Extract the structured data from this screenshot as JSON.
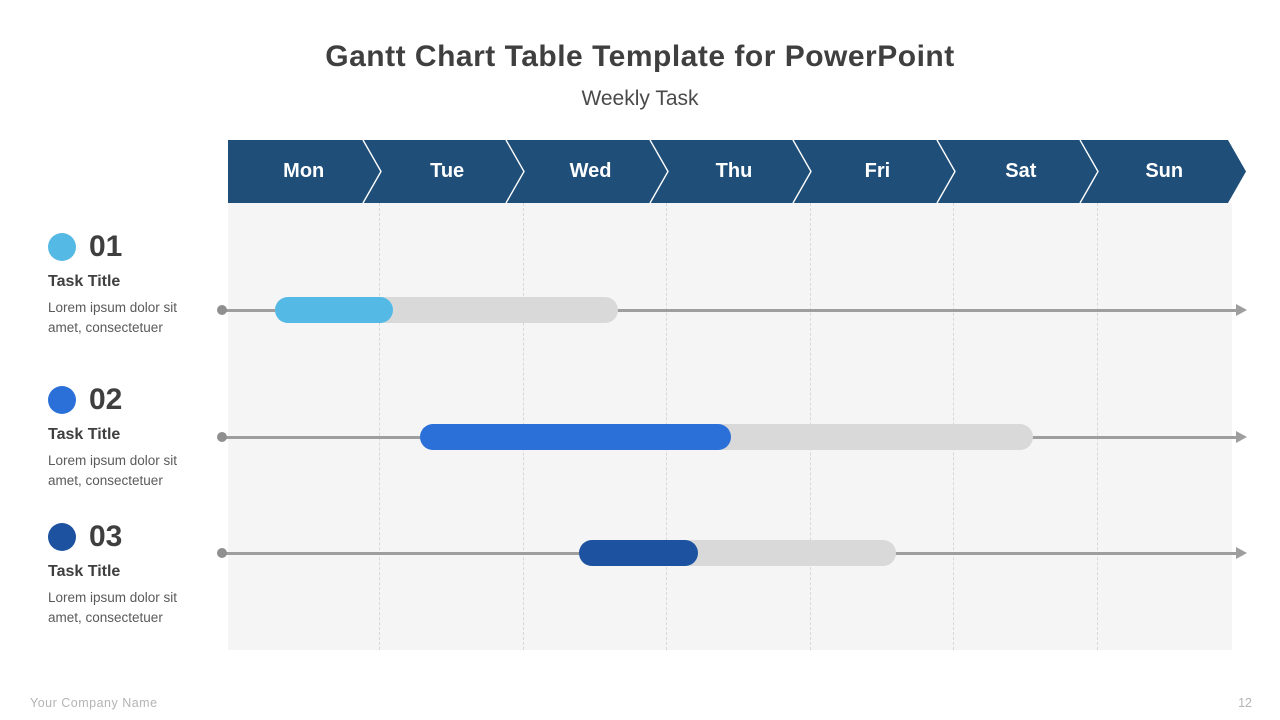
{
  "slide": {
    "title": "Gantt Chart Table Template for PowerPoint",
    "subtitle": "Weekly Task",
    "footer_left": "Your Company Name",
    "page_number": "12"
  },
  "week": {
    "days": [
      "Mon",
      "Tue",
      "Wed",
      "Thu",
      "Fri",
      "Sat",
      "Sun"
    ],
    "header_color": "#1f4e79"
  },
  "tasks": [
    {
      "number": "01",
      "title": "Task Title",
      "description": "Lorem ipsum dolor sit amet, consectetuer",
      "color": "#55b9e5"
    },
    {
      "number": "02",
      "title": "Task Title",
      "description": "Lorem ipsum dolor sit amet, consectetuer",
      "color": "#2b70d9"
    },
    {
      "number": "03",
      "title": "Task Title",
      "description": "Lorem ipsum dolor sit amet, consectetuer",
      "color": "#1c529f"
    }
  ],
  "chart_data": {
    "type": "gantt",
    "title": "Weekly Task",
    "categories": [
      "Mon",
      "Tue",
      "Wed",
      "Thu",
      "Fri",
      "Sat",
      "Sun"
    ],
    "x_axis_range_days": [
      0,
      7
    ],
    "grid": true,
    "track_color": "#d9d9d9",
    "axis_color": "#9e9e9e",
    "background": "#f5f5f6",
    "tasks": [
      {
        "name": "Task 01",
        "start_day": 0.33,
        "progress_end_day": 1.15,
        "track_end_day": 2.72,
        "color": "#55b9e5"
      },
      {
        "name": "Task 02",
        "start_day": 1.34,
        "progress_end_day": 3.51,
        "track_end_day": 5.61,
        "color": "#2b70d9"
      },
      {
        "name": "Task 03",
        "start_day": 2.45,
        "progress_end_day": 3.28,
        "track_end_day": 4.66,
        "color": "#1c529f"
      }
    ]
  }
}
